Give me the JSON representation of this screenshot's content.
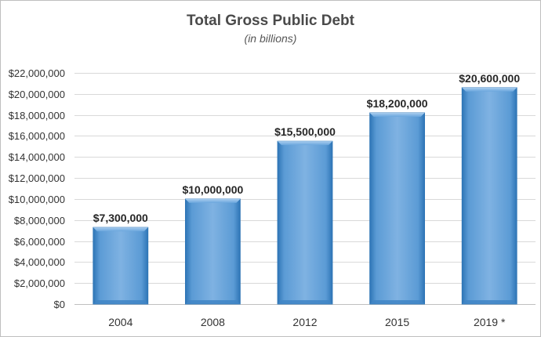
{
  "chart_data": {
    "type": "bar",
    "title": "Total Gross Public Debt",
    "subtitle": "(in billions)",
    "xlabel": "",
    "ylabel": "",
    "categories": [
      "2004",
      "2008",
      "2012",
      "2015",
      "2019 *"
    ],
    "values": [
      7300000,
      10000000,
      15500000,
      18200000,
      20600000
    ],
    "data_labels": [
      "$7,300,000",
      "$10,000,000",
      "$15,500,000",
      "$18,200,000",
      "$20,600,000"
    ],
    "ylim": [
      0,
      22000000
    ],
    "y_ticks": [
      0,
      2000000,
      4000000,
      6000000,
      8000000,
      10000000,
      12000000,
      14000000,
      16000000,
      18000000,
      20000000,
      22000000
    ],
    "y_tick_labels": [
      "$0",
      "$2,000,000",
      "$4,000,000",
      "$6,000,000",
      "$8,000,000",
      "$10,000,000",
      "$12,000,000",
      "$14,000,000",
      "$16,000,000",
      "$18,000,000",
      "$20,000,000",
      "$22,000,000"
    ],
    "grid": true,
    "legend": "none",
    "colors": {
      "bar": "#5b9bd5",
      "bar_light": "#8fbce6",
      "bar_dark": "#2e75b6",
      "grid": "#d9d9d9"
    }
  }
}
